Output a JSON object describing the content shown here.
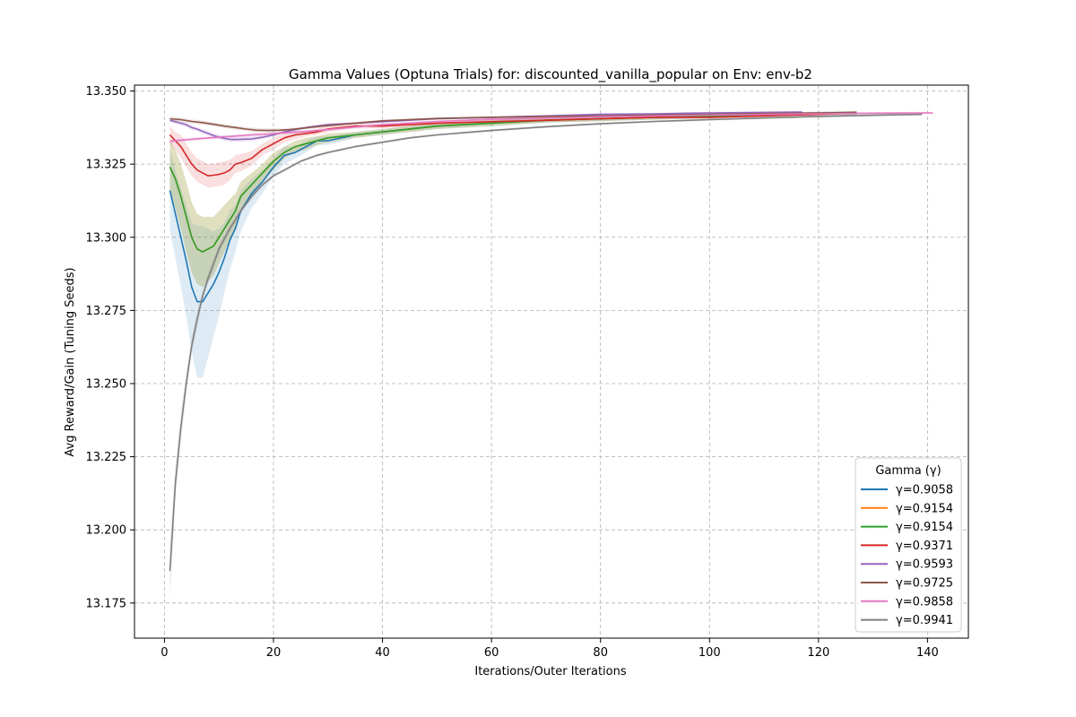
{
  "chart_data": {
    "type": "line",
    "title": "Gamma Values (Optuna Trials) for: discounted_vanilla_popular on Env: env-b2",
    "xlabel": "Iterations/Outer Iterations",
    "ylabel": "Avg Reward/Gain (Tuning Seeds)",
    "xlim": [
      -5.5,
      147.5
    ],
    "ylim": [
      13.163,
      13.352
    ],
    "xticks": [
      0,
      20,
      40,
      60,
      80,
      100,
      120,
      140
    ],
    "xtick_labels": [
      "0",
      "20",
      "40",
      "60",
      "80",
      "100",
      "120",
      "140"
    ],
    "yticks": [
      13.175,
      13.2,
      13.225,
      13.25,
      13.275,
      13.3,
      13.325,
      13.35
    ],
    "ytick_labels": [
      "13.175",
      "13.200",
      "13.225",
      "13.250",
      "13.275",
      "13.300",
      "13.325",
      "13.350"
    ],
    "grid": true,
    "legend": {
      "title": "Gamma (γ)",
      "position": "lower-right"
    },
    "series": [
      {
        "name": "γ=0.9058",
        "color": "#1f77b4",
        "x": [
          1,
          2,
          3,
          4,
          5,
          6,
          7,
          8,
          9,
          10,
          11,
          12,
          13,
          14,
          16,
          18,
          20,
          22,
          24,
          26,
          28,
          30,
          35,
          40,
          50,
          60,
          70,
          80,
          90,
          100,
          110,
          120,
          127
        ],
        "y": [
          13.316,
          13.308,
          13.3,
          13.292,
          13.283,
          13.278,
          13.278,
          13.281,
          13.284,
          13.288,
          13.293,
          13.299,
          13.303,
          13.309,
          13.315,
          13.319,
          13.324,
          13.328,
          13.329,
          13.331,
          13.333,
          13.333,
          13.335,
          13.336,
          13.338,
          13.339,
          13.34,
          13.3405,
          13.341,
          13.3415,
          13.342,
          13.3423,
          13.3425
        ],
        "band": [
          0.014,
          0.015,
          0.017,
          0.019,
          0.022,
          0.026,
          0.026,
          0.022,
          0.018,
          0.015,
          0.012,
          0.01,
          0.008,
          0.007,
          0.005,
          0.004,
          0.003,
          0.003,
          0.002,
          0.002,
          0.0015,
          0.0015,
          0.001,
          0.001,
          0.001,
          0.001,
          0.0008,
          0.0008,
          0.0008,
          0.0008,
          0.0006,
          0.0006,
          0.0006
        ]
      },
      {
        "name": "γ=0.9154",
        "color": "#ff7f0e",
        "x": [
          1,
          2,
          3,
          4,
          5,
          6,
          7,
          8,
          9,
          10,
          11,
          12,
          13,
          14,
          16,
          18,
          20,
          22,
          24,
          26,
          28,
          30,
          35,
          40,
          50,
          60,
          70,
          80,
          90,
          100,
          110,
          120,
          127
        ],
        "y": [
          13.324,
          13.32,
          13.314,
          13.307,
          13.3,
          13.296,
          13.295,
          13.296,
          13.297,
          13.3,
          13.303,
          13.306,
          13.309,
          13.314,
          13.318,
          13.322,
          13.326,
          13.329,
          13.331,
          13.332,
          13.333,
          13.334,
          13.335,
          13.336,
          13.338,
          13.339,
          13.34,
          13.3405,
          13.341,
          13.3415,
          13.342,
          13.3423,
          13.3425
        ],
        "band": [
          0.009,
          0.01,
          0.011,
          0.012,
          0.012,
          0.012,
          0.012,
          0.011,
          0.01,
          0.009,
          0.008,
          0.007,
          0.006,
          0.005,
          0.004,
          0.003,
          0.003,
          0.002,
          0.002,
          0.002,
          0.0015,
          0.0015,
          0.001,
          0.001,
          0.001,
          0.001,
          0.0008,
          0.0008,
          0.0008,
          0.0008,
          0.0006,
          0.0006,
          0.0006
        ]
      },
      {
        "name": "γ=0.9154",
        "color": "#2ca02c",
        "x": [
          1,
          2,
          3,
          4,
          5,
          6,
          7,
          8,
          9,
          10,
          11,
          12,
          13,
          14,
          16,
          18,
          20,
          22,
          24,
          26,
          28,
          30,
          35,
          40,
          50,
          60,
          70,
          80,
          90,
          100,
          110,
          120,
          127
        ],
        "y": [
          13.324,
          13.32,
          13.314,
          13.307,
          13.3,
          13.296,
          13.295,
          13.296,
          13.297,
          13.3,
          13.303,
          13.306,
          13.309,
          13.314,
          13.318,
          13.322,
          13.326,
          13.329,
          13.331,
          13.332,
          13.333,
          13.334,
          13.335,
          13.336,
          13.338,
          13.339,
          13.34,
          13.3405,
          13.341,
          13.3415,
          13.342,
          13.3423,
          13.3425
        ],
        "band": [
          0.009,
          0.01,
          0.011,
          0.012,
          0.012,
          0.012,
          0.012,
          0.011,
          0.01,
          0.009,
          0.008,
          0.007,
          0.006,
          0.005,
          0.004,
          0.003,
          0.003,
          0.002,
          0.002,
          0.002,
          0.0015,
          0.0015,
          0.001,
          0.001,
          0.001,
          0.001,
          0.0008,
          0.0008,
          0.0008,
          0.0008,
          0.0006,
          0.0006,
          0.0006
        ]
      },
      {
        "name": "γ=0.9371",
        "color": "#d62728",
        "x": [
          1,
          2,
          3,
          4,
          5,
          6,
          7,
          8,
          9,
          10,
          11,
          12,
          13,
          14,
          16,
          18,
          20,
          22,
          24,
          26,
          28,
          30,
          35,
          40,
          50,
          60,
          70,
          80,
          90,
          100,
          110,
          120,
          127
        ],
        "y": [
          13.335,
          13.333,
          13.331,
          13.328,
          13.325,
          13.323,
          13.322,
          13.321,
          13.3212,
          13.3215,
          13.322,
          13.323,
          13.325,
          13.3255,
          13.327,
          13.33,
          13.332,
          13.334,
          13.335,
          13.3355,
          13.336,
          13.337,
          13.338,
          13.338,
          13.339,
          13.3395,
          13.34,
          13.3405,
          13.341,
          13.341,
          13.3415,
          13.342,
          13.3425
        ],
        "band": [
          0.003,
          0.003,
          0.004,
          0.004,
          0.004,
          0.004,
          0.004,
          0.004,
          0.004,
          0.004,
          0.004,
          0.0035,
          0.003,
          0.003,
          0.0025,
          0.002,
          0.002,
          0.0015,
          0.0015,
          0.001,
          0.001,
          0.001,
          0.0008,
          0.0008,
          0.0006,
          0.0006,
          0.0006,
          0.0005,
          0.0005,
          0.0005,
          0.0005,
          0.0005,
          0.0005
        ]
      },
      {
        "name": "γ=0.9593",
        "color": "#9467bd",
        "x": [
          1,
          2,
          3,
          4,
          5,
          6,
          7,
          8,
          9,
          10,
          11,
          12,
          13,
          14,
          16,
          18,
          20,
          22,
          24,
          26,
          28,
          30,
          35,
          40,
          50,
          60,
          70,
          80,
          90,
          100,
          110,
          117
        ],
        "y": [
          13.34,
          13.3395,
          13.339,
          13.3385,
          13.3375,
          13.337,
          13.3362,
          13.3355,
          13.3348,
          13.3342,
          13.3338,
          13.3335,
          13.3334,
          13.3335,
          13.3336,
          13.3342,
          13.335,
          13.336,
          13.3368,
          13.3375,
          13.338,
          13.3385,
          13.339,
          13.3395,
          13.3405,
          13.341,
          13.3415,
          13.342,
          13.3422,
          13.3425,
          13.3427,
          13.3428
        ],
        "band": [
          0.0008,
          0.0008,
          0.0008,
          0.0008,
          0.0008,
          0.0008,
          0.0008,
          0.0008,
          0.0008,
          0.0008,
          0.0008,
          0.0008,
          0.0008,
          0.0008,
          0.0008,
          0.0007,
          0.0006,
          0.0006,
          0.0005,
          0.0005,
          0.0005,
          0.0005,
          0.0004,
          0.0004,
          0.0004,
          0.0004,
          0.0004,
          0.0004,
          0.0004,
          0.0004,
          0.0004,
          0.0004
        ]
      },
      {
        "name": "γ=0.9725",
        "color": "#8c564b",
        "x": [
          1,
          3,
          5,
          7,
          9,
          11,
          13,
          15,
          17,
          19,
          21,
          23,
          25,
          27,
          30,
          35,
          40,
          50,
          60,
          70,
          80,
          90,
          100,
          110,
          120,
          127
        ],
        "y": [
          13.3405,
          13.3402,
          13.3396,
          13.3392,
          13.3386,
          13.338,
          13.3375,
          13.337,
          13.3366,
          13.3365,
          13.3366,
          13.3368,
          13.3372,
          13.3376,
          13.3382,
          13.339,
          13.3398,
          13.3406,
          13.341,
          13.3413,
          13.3415,
          13.3418,
          13.342,
          13.3423,
          13.3425,
          13.3427
        ],
        "band": [
          0.0007,
          0.0007,
          0.0007,
          0.0007,
          0.0007,
          0.0007,
          0.0007,
          0.0007,
          0.0007,
          0.0007,
          0.0006,
          0.0006,
          0.0005,
          0.0005,
          0.0005,
          0.0004,
          0.0004,
          0.0004,
          0.0004,
          0.0004,
          0.0004,
          0.0004,
          0.0004,
          0.0004,
          0.0004,
          0.0004
        ]
      },
      {
        "name": "γ=0.9858",
        "color": "#e377c2",
        "x": [
          1,
          3,
          5,
          7,
          10,
          13,
          16,
          19,
          22,
          25,
          30,
          35,
          40,
          50,
          60,
          70,
          80,
          90,
          100,
          110,
          120,
          130,
          141
        ],
        "y": [
          13.3328,
          13.3332,
          13.3335,
          13.3338,
          13.3342,
          13.3346,
          13.335,
          13.3353,
          13.3357,
          13.336,
          13.3368,
          13.3377,
          13.3385,
          13.3396,
          13.3403,
          13.3408,
          13.3412,
          13.3415,
          13.3418,
          13.342,
          13.3422,
          13.3424,
          13.3425
        ],
        "band": [
          0.0006,
          0.0006,
          0.0006,
          0.0006,
          0.0006,
          0.0006,
          0.0006,
          0.0005,
          0.0005,
          0.0005,
          0.0005,
          0.0004,
          0.0004,
          0.0004,
          0.0004,
          0.0004,
          0.0004,
          0.0004,
          0.0004,
          0.0004,
          0.0004,
          0.0004,
          0.0004
        ]
      },
      {
        "name": "γ=0.9941",
        "color": "#7f7f7f",
        "x": [
          1,
          2,
          3,
          4,
          5,
          6,
          7,
          8,
          10,
          12,
          14,
          16,
          18,
          20,
          22,
          25,
          28,
          30,
          35,
          40,
          45,
          50,
          60,
          70,
          80,
          90,
          100,
          110,
          120,
          130,
          139
        ],
        "y": [
          13.186,
          13.216,
          13.235,
          13.25,
          13.263,
          13.272,
          13.28,
          13.286,
          13.296,
          13.303,
          13.309,
          13.314,
          13.318,
          13.321,
          13.323,
          13.326,
          13.328,
          13.329,
          13.331,
          13.3325,
          13.334,
          13.335,
          13.3365,
          13.3378,
          13.3388,
          13.3396,
          13.3402,
          13.3408,
          13.3413,
          13.3417,
          13.342
        ],
        "band": [
          0.01,
          0.006,
          0.005,
          0.004,
          0.003,
          0.003,
          0.002,
          0.002,
          0.0015,
          0.0012,
          0.001,
          0.0008,
          0.0007,
          0.0006,
          0.0006,
          0.0005,
          0.0005,
          0.0005,
          0.0004,
          0.0004,
          0.0004,
          0.0004,
          0.0004,
          0.0004,
          0.0004,
          0.0004,
          0.0004,
          0.0004,
          0.0004,
          0.0004,
          0.0004
        ]
      }
    ]
  }
}
